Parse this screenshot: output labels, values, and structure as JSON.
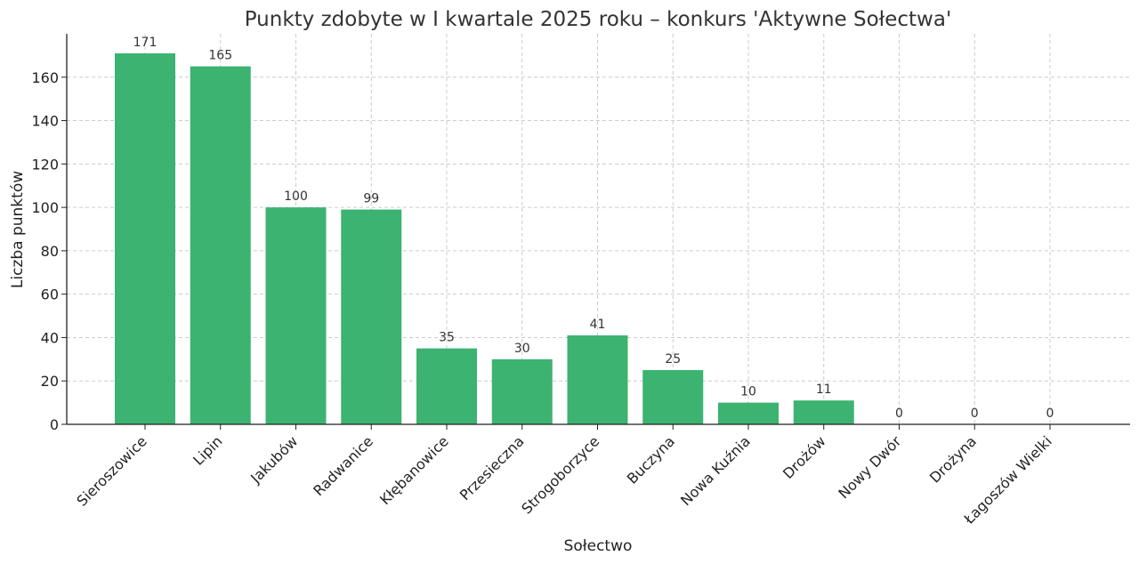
{
  "chart_data": {
    "type": "bar",
    "title": "Punkty zdobyte w I kwartale 2025 roku – konkurs 'Aktywne Sołectwa'",
    "xlabel": "Sołectwo",
    "ylabel": "Liczba punktów",
    "categories": [
      "Sieroszowice",
      "Lipin",
      "Jakubów",
      "Radwanice",
      "Kłębanowice",
      "Przesieczna",
      "Strogoborzyce",
      "Buczyna",
      "Nowa Kuźnia",
      "Drożów",
      "Nowy Dwór",
      "Drożyna",
      "Łagoszów Wielki"
    ],
    "values": [
      171,
      165,
      100,
      99,
      35,
      30,
      41,
      25,
      10,
      11,
      0,
      0,
      0
    ],
    "ylim": [
      0,
      180
    ],
    "yticks": [
      0,
      20,
      40,
      60,
      80,
      100,
      120,
      140,
      160
    ],
    "grid": true,
    "bar_color": "#3cb371"
  }
}
